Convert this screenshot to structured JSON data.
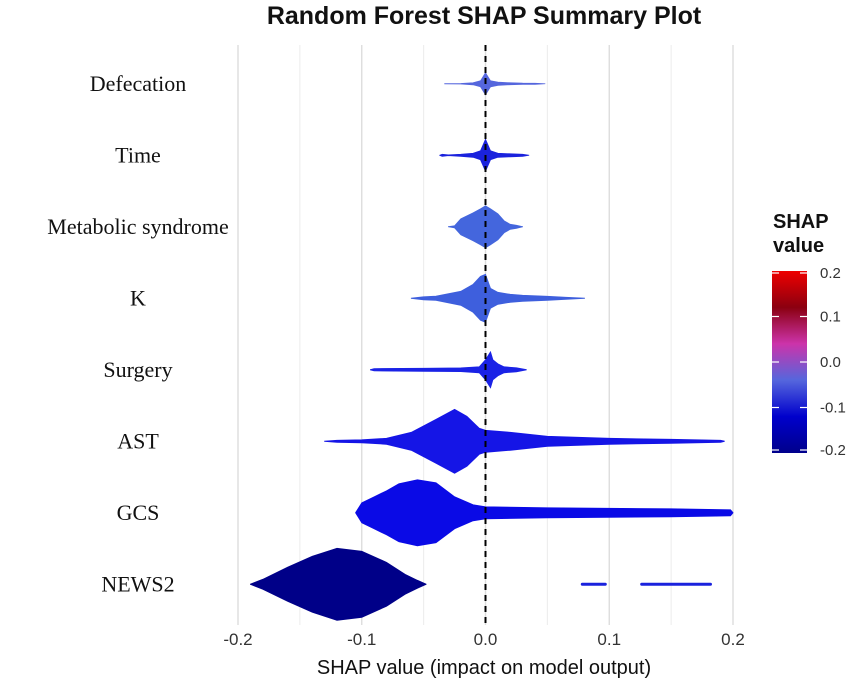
{
  "chart_data": {
    "type": "violin",
    "title": "Random Forest SHAP Summary Plot",
    "xlabel": "SHAP value (impact on model output)",
    "xlim": [
      -0.2,
      0.2
    ],
    "xticks": [
      "-0.2",
      "-0.1",
      "0.0",
      "0.1",
      "0.2"
    ],
    "xtick_values": [
      -0.2,
      -0.1,
      0.0,
      0.1,
      0.2
    ],
    "legend": {
      "title_line1": "SHAP",
      "title_line2": "value",
      "range": [
        -0.2,
        0.2
      ],
      "ticks": [
        "0.2",
        "0.1",
        "0.0",
        "-0.1",
        "-0.2"
      ],
      "tick_values": [
        0.2,
        0.1,
        0.0,
        -0.1,
        -0.2
      ],
      "colors": [
        "#ee0000",
        "#8b0010",
        "#cc33aa",
        "#5566dd",
        "#0000cc",
        "#00008b"
      ]
    },
    "features": [
      {
        "name": "Defecation",
        "color": "#5566dd",
        "profile": [
          [
            -0.033,
            0.1
          ],
          [
            -0.02,
            0.3
          ],
          [
            -0.01,
            1.0
          ],
          [
            -0.004,
            3.0
          ],
          [
            -0.002,
            7
          ],
          [
            0.0,
            11
          ],
          [
            0.002,
            7
          ],
          [
            0.004,
            3.0
          ],
          [
            0.01,
            1.6
          ],
          [
            0.02,
            0.9
          ],
          [
            0.03,
            0.6
          ],
          [
            0.04,
            0.5
          ],
          [
            0.048,
            0.1
          ]
        ]
      },
      {
        "name": "Time",
        "color": "#1a22dd",
        "profile": [
          [
            -0.037,
            0.1
          ],
          [
            -0.035,
            1.0
          ],
          [
            -0.03,
            0.3
          ],
          [
            -0.02,
            1.0
          ],
          [
            -0.01,
            2.0
          ],
          [
            -0.004,
            4.5
          ],
          [
            0.0,
            16
          ],
          [
            0.004,
            4.5
          ],
          [
            0.01,
            2.0
          ],
          [
            0.02,
            1.5
          ],
          [
            0.03,
            1.0
          ],
          [
            0.035,
            0.1
          ]
        ]
      },
      {
        "name": "Metabolic syndrome",
        "color": "#4466dd",
        "profile": [
          [
            -0.03,
            0.1
          ],
          [
            -0.025,
            1.0
          ],
          [
            -0.02,
            8.0
          ],
          [
            -0.01,
            14
          ],
          [
            -0.004,
            18
          ],
          [
            0.0,
            21
          ],
          [
            0.004,
            18
          ],
          [
            0.01,
            13
          ],
          [
            0.015,
            6.0
          ],
          [
            0.02,
            2.5
          ],
          [
            0.025,
            1.5
          ],
          [
            0.03,
            0.1
          ]
        ]
      },
      {
        "name": "K",
        "color": "#3e5fdd",
        "profile": [
          [
            -0.06,
            0.1
          ],
          [
            -0.05,
            1.5
          ],
          [
            -0.04,
            2.2
          ],
          [
            -0.02,
            7.0
          ],
          [
            -0.01,
            14
          ],
          [
            -0.004,
            22
          ],
          [
            0.0,
            24
          ],
          [
            0.004,
            10
          ],
          [
            0.01,
            6.0
          ],
          [
            0.02,
            4.0
          ],
          [
            0.03,
            3.0
          ],
          [
            0.05,
            2.0
          ],
          [
            0.065,
            1.0
          ],
          [
            0.08,
            0.1
          ]
        ]
      },
      {
        "name": "Surgery",
        "color": "#1a22e6",
        "profile": [
          [
            -0.093,
            0.1
          ],
          [
            -0.09,
            1.2
          ],
          [
            -0.05,
            1.5
          ],
          [
            -0.02,
            1.8
          ],
          [
            -0.005,
            3.0
          ],
          [
            0.0,
            10
          ],
          [
            0.004,
            18
          ],
          [
            0.006,
            10
          ],
          [
            0.01,
            6.0
          ],
          [
            0.015,
            3.0
          ],
          [
            0.025,
            2.0
          ],
          [
            0.033,
            0.1
          ]
        ]
      },
      {
        "name": "AST",
        "color": "#1515e6",
        "profile": [
          [
            -0.13,
            0.1
          ],
          [
            -0.12,
            1.0
          ],
          [
            -0.1,
            1.5
          ],
          [
            -0.08,
            3.0
          ],
          [
            -0.06,
            9.0
          ],
          [
            -0.04,
            22
          ],
          [
            -0.025,
            32
          ],
          [
            -0.015,
            25
          ],
          [
            -0.005,
            13
          ],
          [
            0.0,
            11
          ],
          [
            0.02,
            9.0
          ],
          [
            0.05,
            5.0
          ],
          [
            0.1,
            3.0
          ],
          [
            0.15,
            2.0
          ],
          [
            0.19,
            1.0
          ],
          [
            0.193,
            0.1
          ]
        ]
      },
      {
        "name": "GCS",
        "color": "#0a0ae6",
        "profile": [
          [
            -0.105,
            0.1
          ],
          [
            -0.1,
            10
          ],
          [
            -0.09,
            16
          ],
          [
            -0.08,
            22
          ],
          [
            -0.07,
            29
          ],
          [
            -0.055,
            33
          ],
          [
            -0.04,
            30
          ],
          [
            -0.025,
            16
          ],
          [
            -0.01,
            8
          ],
          [
            0.0,
            6.0
          ],
          [
            0.05,
            5.0
          ],
          [
            0.15,
            4.0
          ],
          [
            0.198,
            3.0
          ],
          [
            0.2,
            0.1
          ]
        ]
      },
      {
        "name": "NEWS2",
        "color": "#000088",
        "profile": [
          [
            -0.19,
            0.1
          ],
          [
            -0.18,
            5.0
          ],
          [
            -0.16,
            17
          ],
          [
            -0.14,
            28
          ],
          [
            -0.12,
            36
          ],
          [
            -0.1,
            33
          ],
          [
            -0.08,
            22
          ],
          [
            -0.065,
            10
          ],
          [
            -0.055,
            4.0
          ],
          [
            -0.048,
            0.1
          ]
        ]
      }
    ],
    "outlier_segments": [
      {
        "feature": "NEWS2",
        "x0": 0.077,
        "x1": 0.098,
        "color": "#1a22dd"
      },
      {
        "feature": "NEWS2",
        "x0": 0.125,
        "x1": 0.183,
        "color": "#1a22dd"
      }
    ]
  }
}
